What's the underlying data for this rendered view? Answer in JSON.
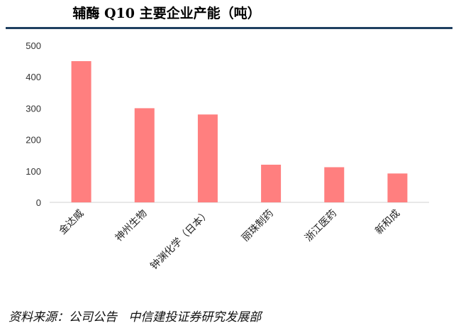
{
  "title": "辅酶 Q10 主要企业产能（吨）",
  "source": "资料来源：公司公告   中信建投证券研究发展部",
  "colors": {
    "bar": "#ff7f7f",
    "rule": "#1f3f60",
    "axis": "#d0d0d0"
  },
  "chart_data": {
    "type": "bar",
    "categories": [
      "金达威",
      "神州生物",
      "钟渊化学（日本）",
      "丽珠制药",
      "浙江医药",
      "新和成"
    ],
    "values": [
      450,
      300,
      280,
      120,
      112,
      92
    ],
    "ylim": [
      0,
      500
    ],
    "yticks": [
      0,
      100,
      200,
      300,
      400,
      500
    ],
    "xlabel": "",
    "ylabel": "",
    "grid": false,
    "legend": "none"
  }
}
